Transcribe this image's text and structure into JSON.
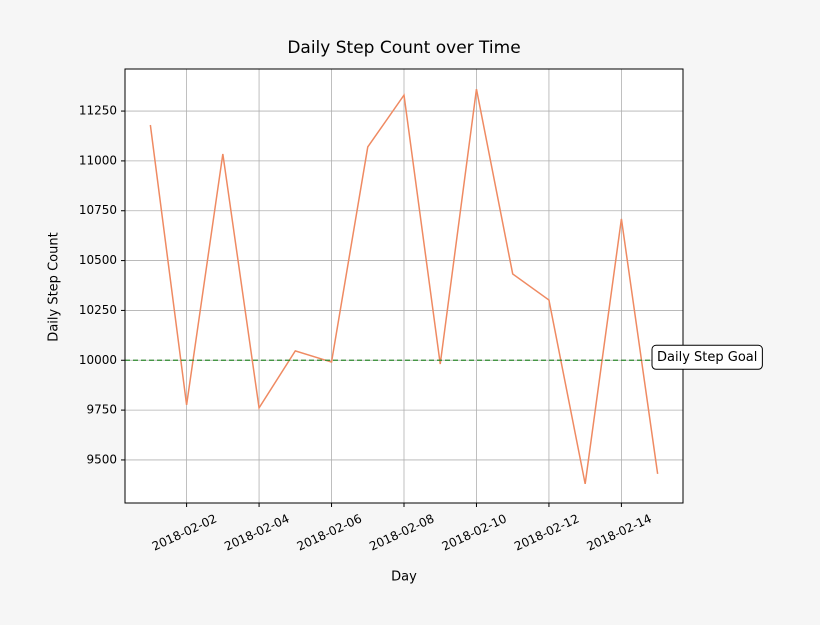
{
  "chart_data": {
    "type": "line",
    "title": "Daily Step Count over Time",
    "x_label": "Day",
    "y_label": "Daily Step Count",
    "x": [
      "2018-02-01",
      "2018-02-02",
      "2018-02-03",
      "2018-02-04",
      "2018-02-05",
      "2018-02-06",
      "2018-02-07",
      "2018-02-08",
      "2018-02-09",
      "2018-02-10",
      "2018-02-11",
      "2018-02-12",
      "2018-02-13",
      "2018-02-14",
      "2018-02-15"
    ],
    "series": [
      {
        "name": "Daily Step Count",
        "color": "#ef8a62",
        "values": [
          11180,
          9776,
          11035,
          9761,
          10047,
          9991,
          11070,
          11330,
          9981,
          11360,
          10433,
          10302,
          9380,
          10709,
          9430
        ]
      }
    ],
    "goal": {
      "value": 10000,
      "label": "Daily Step Goal",
      "color": "#2e8b2e"
    },
    "xticks": [
      "2018-02-02",
      "2018-02-04",
      "2018-02-06",
      "2018-02-08",
      "2018-02-10",
      "2018-02-12",
      "2018-02-14"
    ],
    "ylim": [
      9284,
      11461
    ],
    "yticks": [
      9500,
      9750,
      10000,
      10250,
      10500,
      10750,
      11000,
      11250
    ],
    "grid": true
  }
}
